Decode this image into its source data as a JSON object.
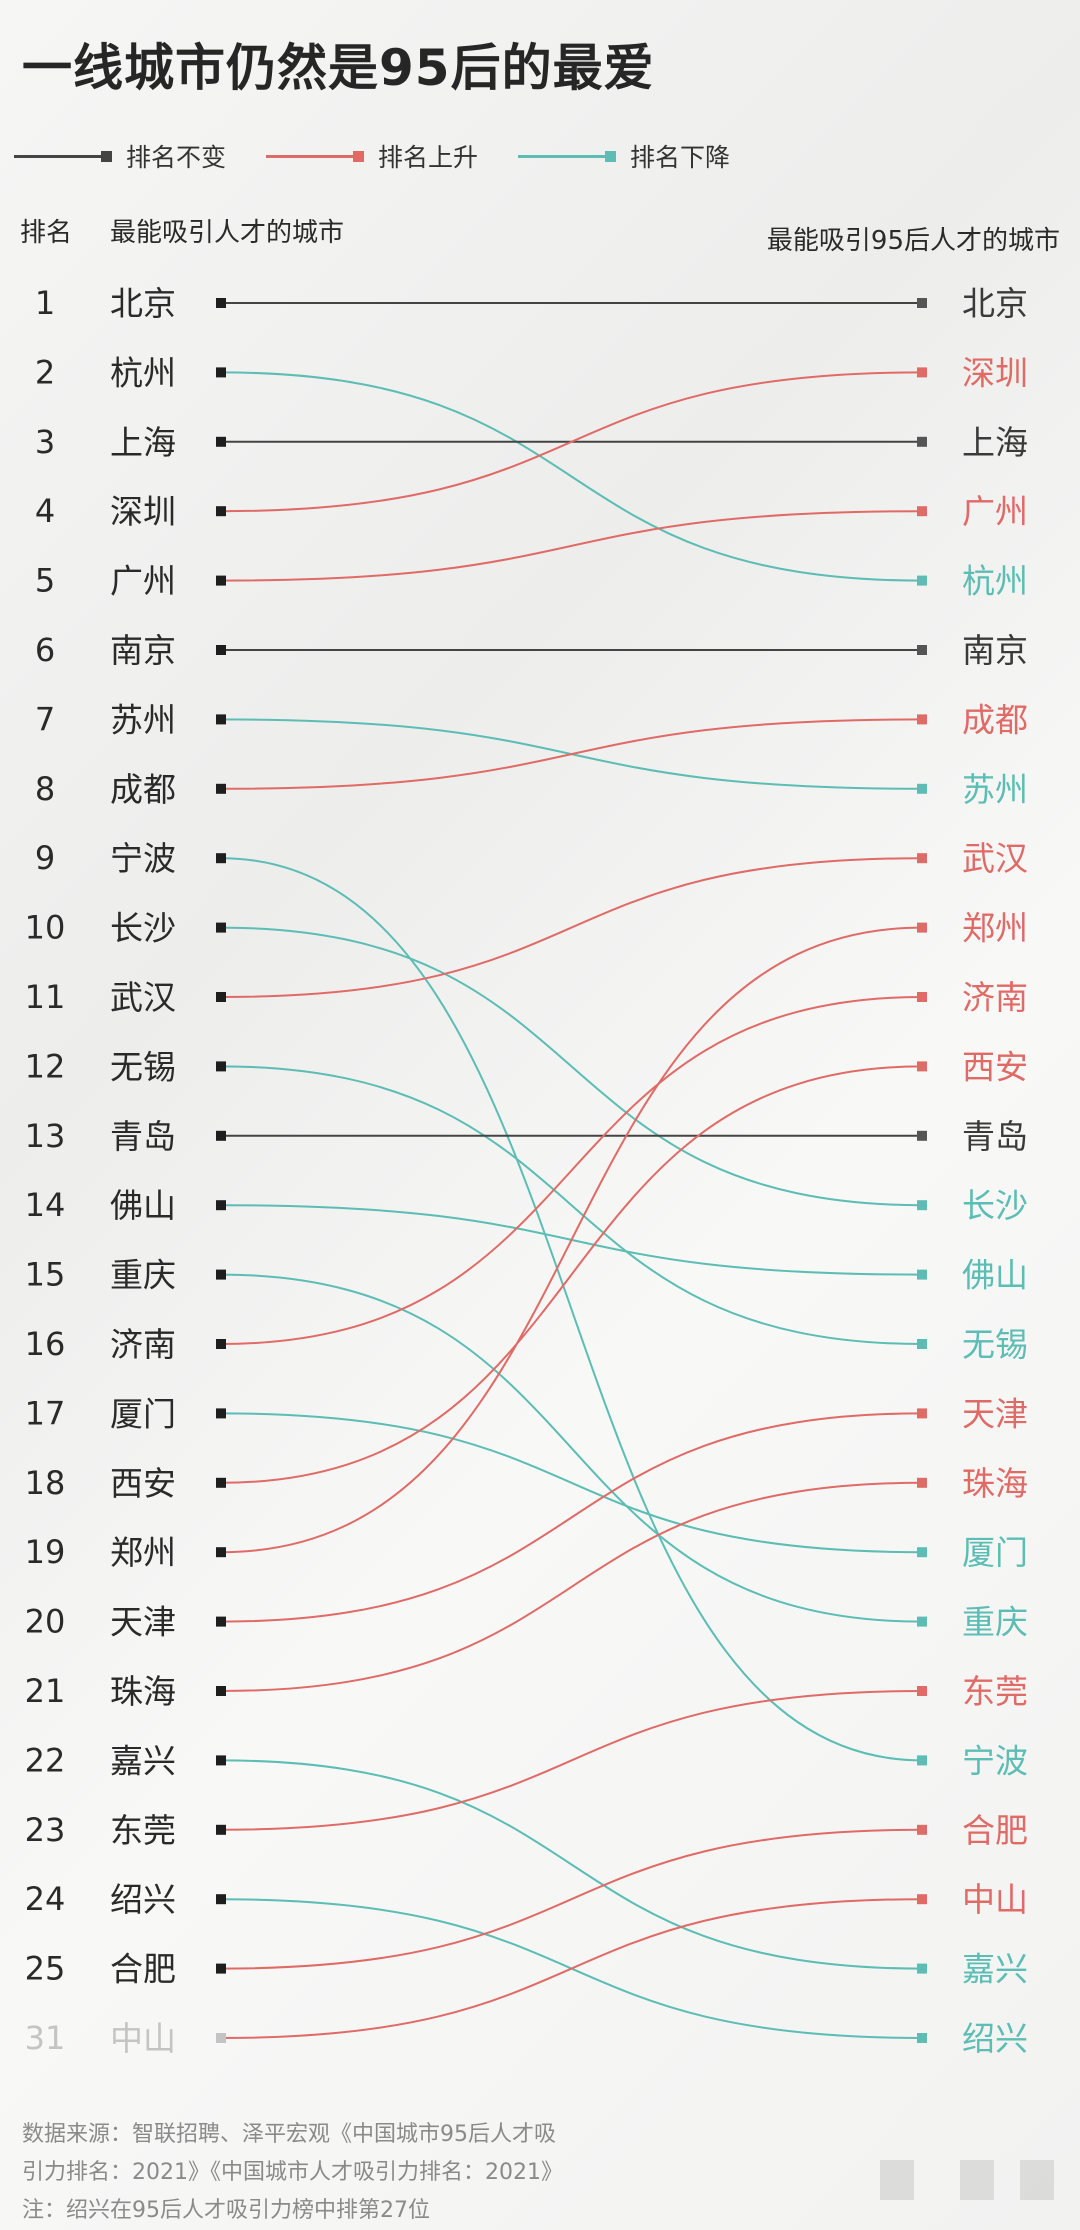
{
  "title": "一线城市仍然是95后的最爱",
  "legend": [
    {
      "label": "排名不变",
      "color": "#444444"
    },
    {
      "label": "排名上升",
      "color": "#e06a66"
    },
    {
      "label": "排名下降",
      "color": "#5bbdb3"
    }
  ],
  "headers": {
    "rank": "排名",
    "left": "最能吸引人才的城市",
    "right": "最能吸引95后人才的城市"
  },
  "footer": {
    "line1": "数据来源：智联招聘、泽平宏观《中国城市95后人才吸",
    "line2": "引力排名：2021》《中国城市人才吸引力排名：2021》",
    "line3": "注：绍兴在95后人才吸引力榜中排第27位"
  },
  "chart_data": {
    "type": "slope",
    "left_title": "最能吸引人才的城市",
    "right_title": "最能吸引95后人才的城市",
    "colors": {
      "same": "#444444",
      "up": "#e06a66",
      "down": "#5bbdb3",
      "dim": "#c4c4c4"
    },
    "left": [
      {
        "rank": "1",
        "city": "北京"
      },
      {
        "rank": "2",
        "city": "杭州"
      },
      {
        "rank": "3",
        "city": "上海"
      },
      {
        "rank": "4",
        "city": "深圳"
      },
      {
        "rank": "5",
        "city": "广州"
      },
      {
        "rank": "6",
        "city": "南京"
      },
      {
        "rank": "7",
        "city": "苏州"
      },
      {
        "rank": "8",
        "city": "成都"
      },
      {
        "rank": "9",
        "city": "宁波"
      },
      {
        "rank": "10",
        "city": "长沙"
      },
      {
        "rank": "11",
        "city": "武汉"
      },
      {
        "rank": "12",
        "city": "无锡"
      },
      {
        "rank": "13",
        "city": "青岛"
      },
      {
        "rank": "14",
        "city": "佛山"
      },
      {
        "rank": "15",
        "city": "重庆"
      },
      {
        "rank": "16",
        "city": "济南"
      },
      {
        "rank": "17",
        "city": "厦门"
      },
      {
        "rank": "18",
        "city": "西安"
      },
      {
        "rank": "19",
        "city": "郑州"
      },
      {
        "rank": "20",
        "city": "天津"
      },
      {
        "rank": "21",
        "city": "珠海"
      },
      {
        "rank": "22",
        "city": "嘉兴"
      },
      {
        "rank": "23",
        "city": "东莞"
      },
      {
        "rank": "24",
        "city": "绍兴"
      },
      {
        "rank": "25",
        "city": "合肥"
      },
      {
        "rank": "31",
        "city": "中山",
        "dim": true
      }
    ],
    "right": [
      "北京",
      "深圳",
      "上海",
      "广州",
      "杭州",
      "南京",
      "成都",
      "苏州",
      "武汉",
      "郑州",
      "济南",
      "西安",
      "青岛",
      "长沙",
      "佛山",
      "无锡",
      "天津",
      "珠海",
      "厦门",
      "重庆",
      "东莞",
      "宁波",
      "合肥",
      "中山",
      "嘉兴",
      "绍兴"
    ]
  }
}
